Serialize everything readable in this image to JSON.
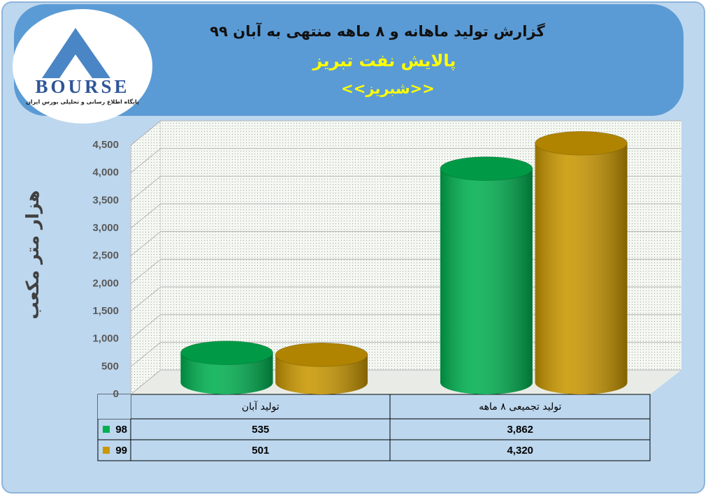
{
  "logo": {
    "name": "BOURSE",
    "tagline": "پایگاه اطلاع رسانی و تحلیلی بورس ایران"
  },
  "chart_data": {
    "type": "bar",
    "title": "گزارش تولید ماهانه و ۸ ماهه منتهی به آبان ۹۹",
    "subtitle": "پالایش نفت تبریز",
    "company": "<<شبریز>>",
    "y_label": "هزار متر مکعب",
    "categories": [
      "تولید آبان",
      "تولید تجمیعی ۸ ماهه"
    ],
    "series": [
      {
        "name": "98",
        "color": "#00b050",
        "values": [
          535,
          3862
        ],
        "value_labels": [
          "535",
          "3,862"
        ]
      },
      {
        "name": "99",
        "color": "#c99700",
        "values": [
          501,
          4320
        ],
        "value_labels": [
          "501",
          "4,320"
        ]
      }
    ],
    "ylim": [
      0,
      4500
    ],
    "yticks": [
      0,
      500,
      {
        "value": 1000,
        "label": "1,000"
      },
      {
        "value": 1500,
        "label": "1,500"
      },
      {
        "value": 2000,
        "label": "2,000"
      },
      {
        "value": 2500,
        "label": "2,500"
      },
      {
        "value": 3000,
        "label": "3,000"
      },
      {
        "value": 3500,
        "label": "3,500"
      },
      {
        "value": 4000,
        "label": "4,000"
      },
      {
        "value": 4500,
        "label": "4,500"
      }
    ],
    "grid": true
  }
}
